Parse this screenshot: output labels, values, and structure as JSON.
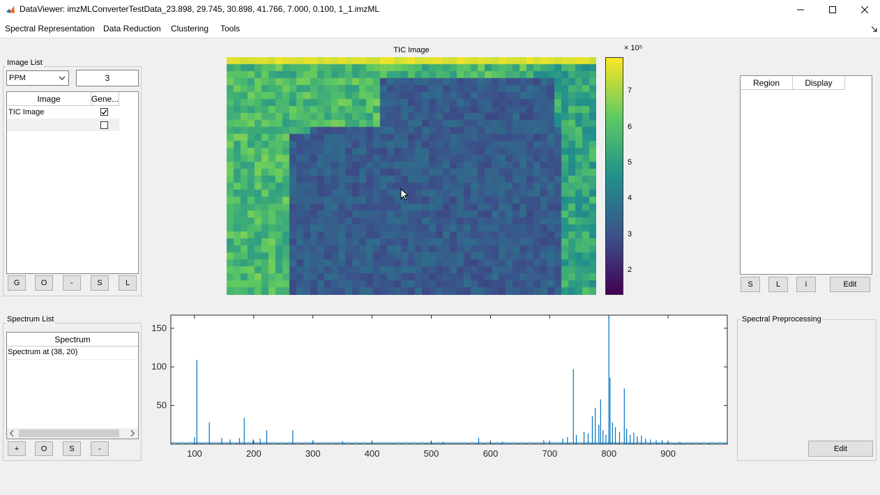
{
  "window": {
    "title": "DataViewer: imzMLConverterTestData_23.898, 29.745, 30.898, 41.766, 7.000, 0.100, 1_1.imzML"
  },
  "menu": [
    "Spectral Representation",
    "Data Reduction",
    "Clustering",
    "Tools"
  ],
  "image_list": {
    "title": "Image List",
    "dropdown_value": "PPM",
    "number_value": "3",
    "columns": [
      "Image",
      "Gene..."
    ],
    "rows": [
      {
        "name": "TIC Image",
        "checked": true
      },
      {
        "name": "",
        "checked": false
      }
    ],
    "buttons": [
      "G",
      "O",
      "-",
      "S",
      "L"
    ]
  },
  "tic_image": {
    "title": "TIC Image",
    "colorbar_ticks": [
      "7",
      "6",
      "5",
      "4",
      "3",
      "2"
    ],
    "colorbar_exponent": "× 10⁵",
    "colors": {
      "low": "#440154",
      "mid": "#30648d",
      "high": "#fde725"
    }
  },
  "region_panel": {
    "columns": [
      "Region",
      "Display"
    ],
    "buttons": [
      "S",
      "L",
      "i",
      "Edit"
    ]
  },
  "spectrum_list": {
    "title": "Spectrum List",
    "column": "Spectrum",
    "rows": [
      "Spectrum at (38, 20)"
    ],
    "buttons": [
      "+",
      "O",
      "S",
      "-"
    ]
  },
  "spectral_preprocessing": {
    "title": "Spectral Preprocessing",
    "edit_label": "Edit"
  },
  "chart_data": {
    "type": "line",
    "title": "",
    "xlabel": "",
    "ylabel": "",
    "xlim": [
      60,
      1000
    ],
    "ylim": [
      0,
      167
    ],
    "xticks": [
      100,
      200,
      300,
      400,
      500,
      600,
      700,
      800,
      900
    ],
    "yticks": [
      50,
      100,
      150
    ],
    "color": "#0072bd",
    "peaks": [
      [
        100,
        9
      ],
      [
        104,
        109
      ],
      [
        125,
        28
      ],
      [
        146,
        8
      ],
      [
        160,
        6
      ],
      [
        176,
        8
      ],
      [
        184,
        34
      ],
      [
        199,
        6
      ],
      [
        211,
        7
      ],
      [
        222,
        18
      ],
      [
        266,
        18
      ],
      [
        300,
        5
      ],
      [
        350,
        4
      ],
      [
        520,
        3
      ],
      [
        580,
        8
      ],
      [
        620,
        3
      ],
      [
        690,
        5
      ],
      [
        722,
        7
      ],
      [
        730,
        9
      ],
      [
        740,
        97
      ],
      [
        745,
        12
      ],
      [
        758,
        16
      ],
      [
        765,
        14
      ],
      [
        772,
        36
      ],
      [
        777,
        47
      ],
      [
        783,
        25
      ],
      [
        786,
        58
      ],
      [
        790,
        18
      ],
      [
        795,
        12
      ],
      [
        800,
        167
      ],
      [
        802,
        86
      ],
      [
        806,
        28
      ],
      [
        811,
        22
      ],
      [
        818,
        16
      ],
      [
        826,
        72
      ],
      [
        830,
        20
      ],
      [
        836,
        12
      ],
      [
        842,
        15
      ],
      [
        848,
        10
      ],
      [
        855,
        11
      ],
      [
        862,
        7
      ],
      [
        870,
        6
      ],
      [
        880,
        5
      ],
      [
        890,
        5
      ],
      [
        920,
        3
      ],
      [
        970,
        2
      ]
    ]
  }
}
